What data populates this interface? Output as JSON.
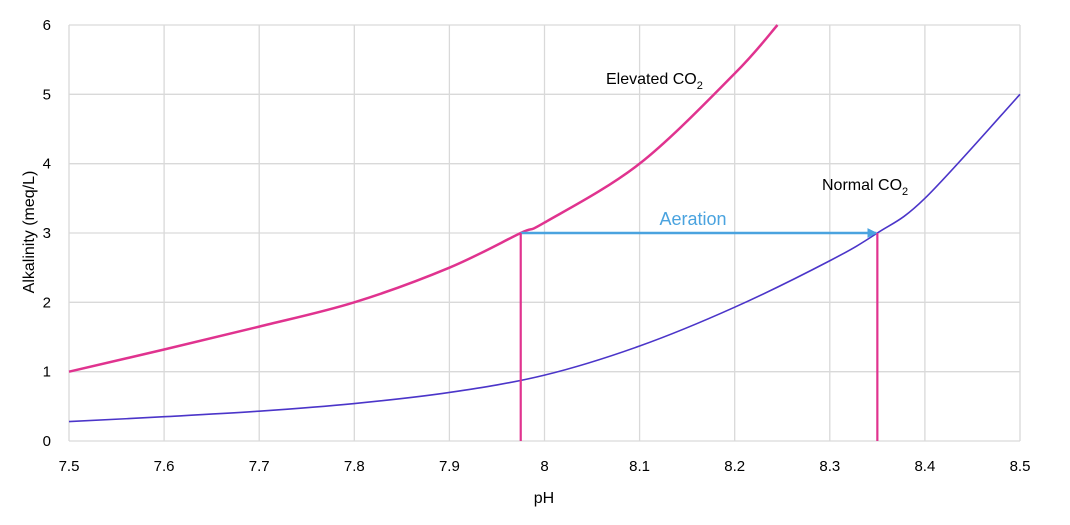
{
  "chart_data": {
    "type": "line",
    "xlabel": "pH",
    "ylabel": "Alkalinity (meq/L)",
    "xlim": [
      7.5,
      8.5
    ],
    "ylim": [
      0,
      6
    ],
    "x_ticks": [
      "7.5",
      "7.6",
      "7.7",
      "7.8",
      "7.9",
      "8",
      "8.1",
      "8.2",
      "8.3",
      "8.4",
      "8.5"
    ],
    "y_ticks": [
      "0",
      "1",
      "2",
      "3",
      "4",
      "5",
      "6"
    ],
    "grid": true,
    "legend": "none",
    "series": [
      {
        "name": "Elevated CO",
        "name_sub": "2",
        "color": "#e0338f",
        "x": [
          7.5,
          7.6,
          7.7,
          7.8,
          7.9,
          7.975,
          8.0,
          8.1,
          8.2,
          8.245
        ],
        "y": [
          1.0,
          1.32,
          1.65,
          2.0,
          2.5,
          3.0,
          3.15,
          4.0,
          5.3,
          6.0
        ]
      },
      {
        "name": "Normal CO",
        "name_sub": "2",
        "color": "#4b35c9",
        "x": [
          7.5,
          7.6,
          7.7,
          7.8,
          7.9,
          8.0,
          8.1,
          8.2,
          8.3,
          8.35,
          8.4,
          8.5
        ],
        "y": [
          0.28,
          0.35,
          0.43,
          0.54,
          0.7,
          0.95,
          1.37,
          1.93,
          2.6,
          3.0,
          3.5,
          5.0
        ]
      }
    ],
    "annotations": {
      "aeration": {
        "label": "Aeration",
        "color": "#4aa3df",
        "from": [
          7.975,
          3.0
        ],
        "to": [
          8.35,
          3.0
        ]
      },
      "verticals": [
        {
          "x": 7.975,
          "y": 3.0,
          "color": "#e0338f"
        },
        {
          "x": 8.35,
          "y": 3.0,
          "color": "#e0338f"
        }
      ]
    }
  }
}
